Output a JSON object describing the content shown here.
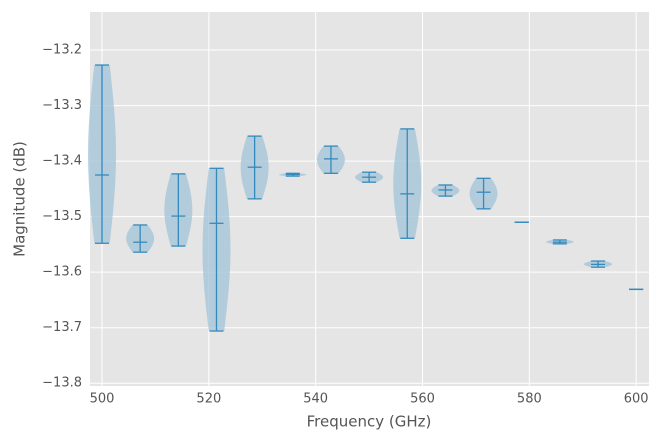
{
  "chart_data": {
    "type": "violin",
    "x_label": "Frequency (GHz)",
    "y_label": "Magnitude (dB)",
    "x": [
      500,
      507.14,
      514.29,
      521.43,
      528.57,
      535.71,
      542.86,
      550,
      557.14,
      564.29,
      571.43,
      578.57,
      585.71,
      592.86,
      600
    ],
    "maxs": [
      -13.227,
      -13.515,
      -13.423,
      -13.413,
      -13.355,
      -13.422,
      -13.373,
      -13.42,
      -13.342,
      -13.443,
      -13.431,
      -13.51,
      -13.542,
      -13.58,
      -13.631
    ],
    "medians": [
      -13.425,
      -13.546,
      -13.499,
      -13.512,
      -13.411,
      -13.424,
      -13.396,
      -13.429,
      -13.459,
      -13.452,
      -13.456,
      -13.51,
      -13.546,
      -13.586,
      -13.631
    ],
    "mins": [
      -13.548,
      -13.564,
      -13.553,
      -13.706,
      -13.468,
      -13.427,
      -13.422,
      -13.438,
      -13.539,
      -13.463,
      -13.486,
      -13.51,
      -13.549,
      -13.591,
      -13.631
    ],
    "color": "#348abd",
    "fill_color": "#a6c6d9",
    "xlim": [
      497.75,
      602.4
    ],
    "ylim": [
      -13.805,
      -13.1315
    ],
    "xticks": [
      500,
      520,
      540,
      560,
      580,
      600
    ],
    "yticks": [
      {
        "value": -13.8,
        "label": "−13.8"
      },
      {
        "value": -13.7,
        "label": "−13.7"
      },
      {
        "value": -13.6,
        "label": "−13.6"
      },
      {
        "value": -13.5,
        "label": "−13.5"
      },
      {
        "value": -13.4,
        "label": "−13.4"
      },
      {
        "value": -13.3,
        "label": "−13.3"
      },
      {
        "value": -13.2,
        "label": "−13.2"
      }
    ],
    "grid": true
  }
}
